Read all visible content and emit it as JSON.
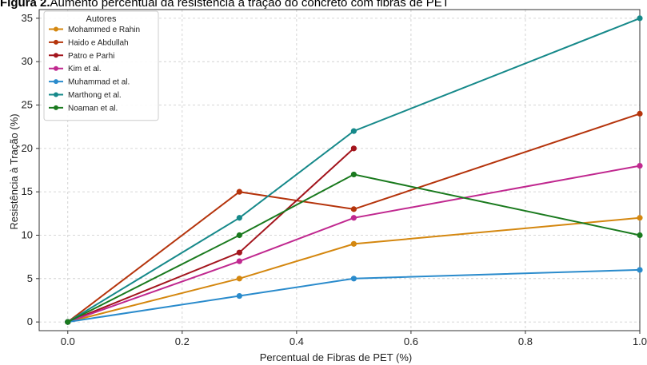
{
  "figure": {
    "caption_bold": "Figura 2.",
    "caption_text": "Aumento percentual da resistência à tração do concreto com fibras de PET"
  },
  "chart_data": {
    "type": "line",
    "x": [
      0.0,
      0.3,
      0.5,
      1.0
    ],
    "xlabel": "Percentual de Fibras de PET (%)",
    "ylabel": "Resistência à Tração (%)",
    "xlim": [
      -0.05,
      1.0
    ],
    "ylim": [
      -1,
      36
    ],
    "xticks": [
      "0.0",
      "0.2",
      "0.4",
      "0.6",
      "0.8",
      "1.0"
    ],
    "yticks": [
      "0",
      "5",
      "10",
      "15",
      "20",
      "25",
      "30",
      "35"
    ],
    "grid": true,
    "legend_title": "Autores",
    "legend_position": "top-left",
    "series": [
      {
        "name": "Mohammed e Rahin",
        "color": "#d4870f",
        "x": [
          0.0,
          0.3,
          0.5,
          1.0
        ],
        "values": [
          0,
          5,
          9,
          12
        ]
      },
      {
        "name": "Haido e Abdullah",
        "color": "#b5340c",
        "x": [
          0.0,
          0.3,
          0.5,
          1.0
        ],
        "values": [
          0,
          15,
          13,
          24
        ]
      },
      {
        "name": "Patro e Parhi",
        "color": "#a3151d",
        "x": [
          0.0,
          0.3,
          0.5
        ],
        "values": [
          0,
          8,
          20
        ]
      },
      {
        "name": "Kim et al.",
        "color": "#c0288f",
        "x": [
          0.0,
          0.3,
          0.5,
          1.0
        ],
        "values": [
          0,
          7,
          12,
          18
        ]
      },
      {
        "name": "Muhammad et al.",
        "color": "#2a8bcc",
        "x": [
          0.0,
          0.3,
          0.5,
          1.0
        ],
        "values": [
          0,
          3,
          5,
          6
        ]
      },
      {
        "name": "Marthong et al.",
        "color": "#16898a",
        "x": [
          0.0,
          0.3,
          0.5,
          1.0
        ],
        "values": [
          0,
          12,
          22,
          35
        ]
      },
      {
        "name": "Noaman et al.",
        "color": "#1a7a1e",
        "x": [
          0.0,
          0.3,
          0.5,
          1.0
        ],
        "values": [
          0,
          10,
          17,
          10
        ]
      }
    ]
  }
}
